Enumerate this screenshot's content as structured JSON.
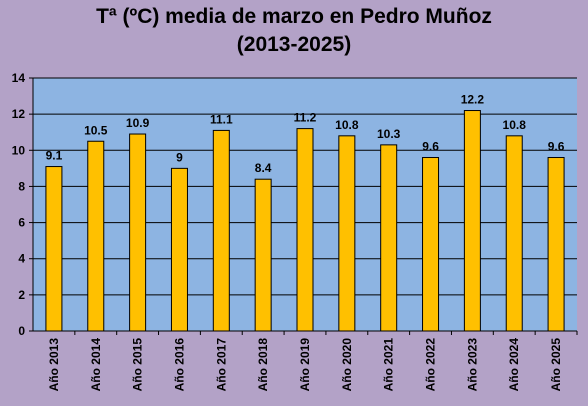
{
  "chart_data": {
    "type": "bar",
    "title_line1": "Tª (ºC) media de marzo en Pedro Muñoz",
    "title_line2": "(2013-2025)",
    "xlabel": "",
    "ylabel": "",
    "ylim": [
      0,
      14
    ],
    "yticks": [
      0,
      2,
      4,
      6,
      8,
      10,
      12,
      14
    ],
    "grid": true,
    "categories": [
      "Año 2013",
      "Año 2014",
      "Año 2015",
      "Año 2016",
      "Año 2017",
      "Año 2018",
      "Año 2019",
      "Año 2020",
      "Año 2021",
      "Año 2022",
      "Año 2023",
      "Año 2024",
      "Año 2025"
    ],
    "values": [
      9.1,
      10.5,
      10.9,
      9,
      11.1,
      8.4,
      11.2,
      10.8,
      10.3,
      9.6,
      12.2,
      10.8,
      9.6
    ],
    "data_labels": [
      "9.1",
      "10.5",
      "10.9",
      "9",
      "11.1",
      "8.4",
      "11.2",
      "10.8",
      "10.3",
      "9.6",
      "12.2",
      "10.8",
      "9.6"
    ],
    "colors": {
      "background": "#b3a2c7",
      "plot_area": "#8db4e2",
      "bar_fill": "#ffc000",
      "bar_stroke": "#000000",
      "grid": "#000000"
    }
  }
}
